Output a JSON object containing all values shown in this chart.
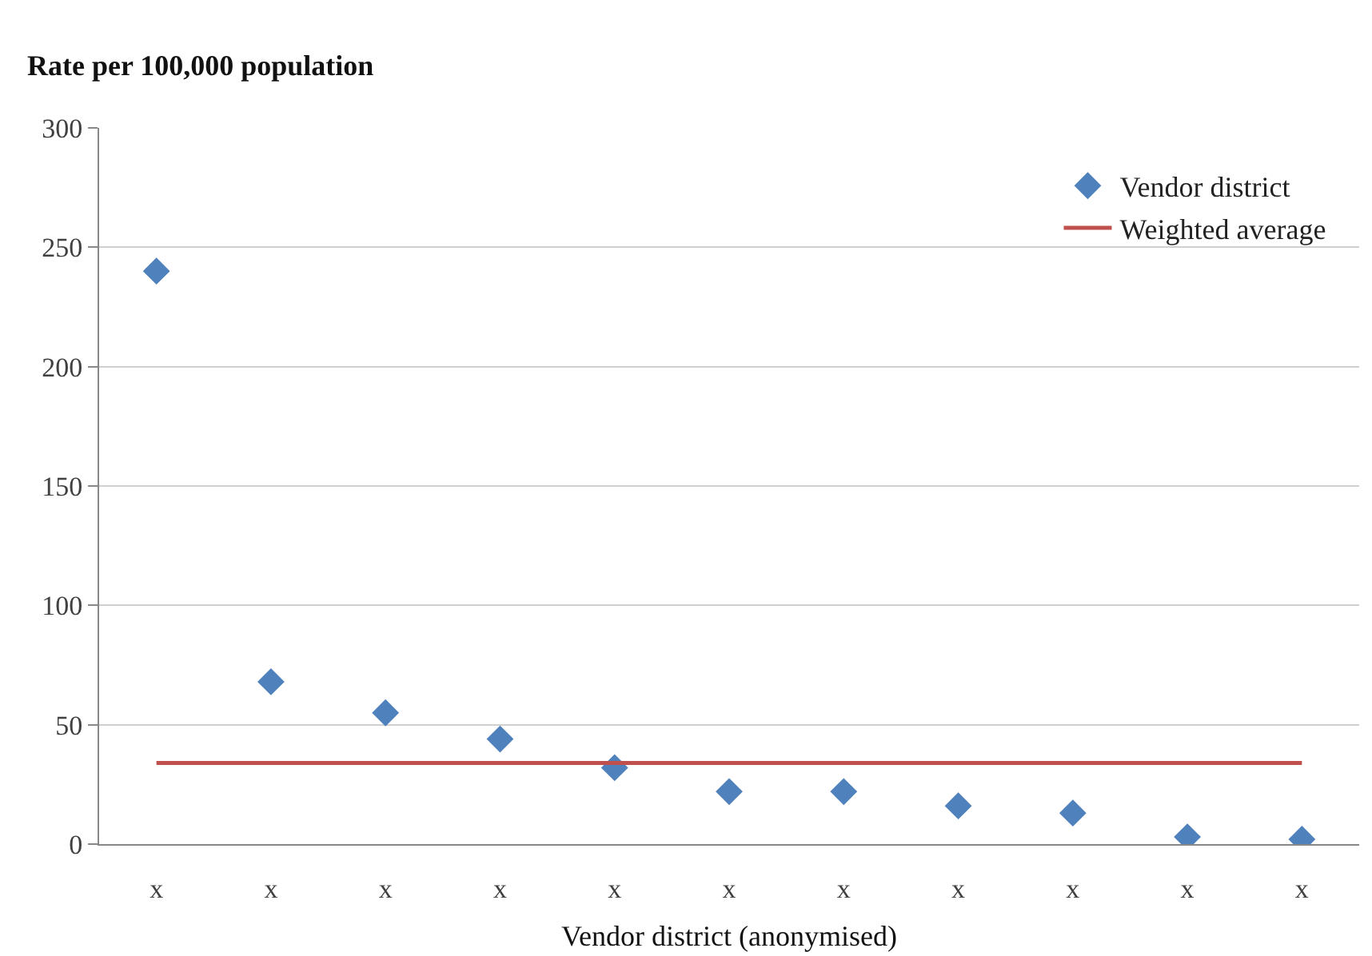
{
  "chart_data": {
    "type": "scatter",
    "ylabel": "Rate per 100,000 population",
    "xlabel": "Vendor district (anonymised)",
    "categories": [
      "x",
      "x",
      "x",
      "x",
      "x",
      "x",
      "x",
      "x",
      "x",
      "x",
      "x"
    ],
    "series": [
      {
        "name": "Vendor district",
        "marker": "diamond",
        "color": "#4f81bd",
        "values": [
          240,
          68,
          55,
          44,
          32,
          22,
          22,
          16,
          13,
          3,
          2
        ]
      },
      {
        "name": "Weighted average",
        "type": "line",
        "marker": "none",
        "color": "#c0504d",
        "values": [
          34,
          34,
          34,
          34,
          34,
          34,
          34,
          34,
          34,
          34,
          34
        ]
      }
    ],
    "ylim": [
      0,
      300
    ],
    "yticks": [
      0,
      50,
      100,
      150,
      200,
      250,
      300
    ],
    "grid": "y",
    "legend": "top right"
  }
}
